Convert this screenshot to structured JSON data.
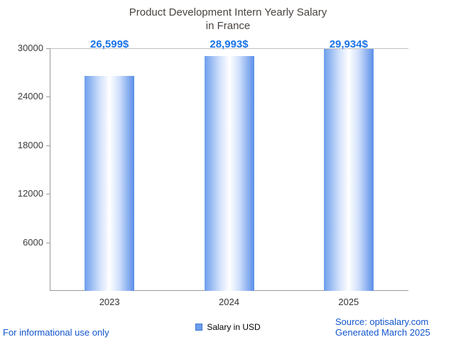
{
  "chart_data": {
    "type": "bar",
    "title_line1": "Product Development Intern Yearly Salary",
    "title_line2": "in France",
    "categories": [
      "2023",
      "2024",
      "2025"
    ],
    "values": [
      26599,
      28993,
      29934
    ],
    "value_labels": [
      "26,599$",
      "28,993$",
      "29,934$"
    ],
    "yticks": [
      30000,
      24000,
      18000,
      12000,
      6000
    ],
    "ylim": [
      0,
      30000
    ],
    "legend": "Salary in USD",
    "grid": "off",
    "legend_position": "bottom-center",
    "colors": {
      "accent": "#1a73e8",
      "link_blue": "#1155cc",
      "bar_edge_left": "#6d9eeb",
      "bar_edge_right": "#5b8fe8",
      "bar_center": "#ffffff"
    }
  },
  "footer": {
    "disclaimer": "For informational use only",
    "source": "Source: optisalary.com",
    "generated": "Generated March 2025"
  }
}
